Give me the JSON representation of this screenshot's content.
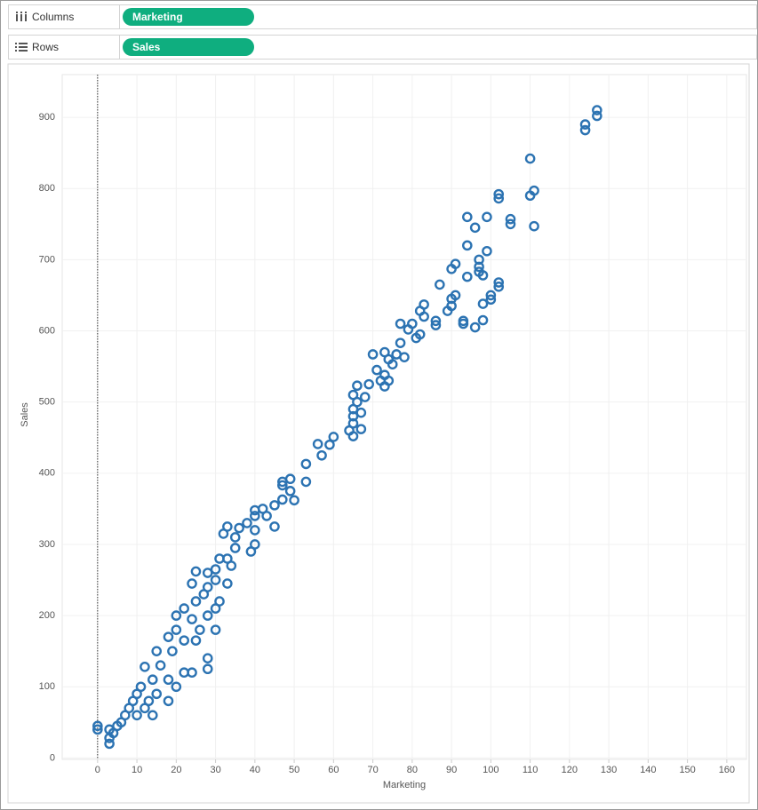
{
  "shelves": {
    "columns": {
      "label": "Columns",
      "field": "Marketing"
    },
    "rows": {
      "label": "Rows",
      "field": "Sales"
    }
  },
  "chart_data": {
    "type": "scatter",
    "x_label": "Marketing",
    "y_label": "Sales",
    "color": "#2c73b2",
    "grid": true,
    "zero_line": true,
    "xlim": [
      -9,
      165
    ],
    "xticks": [
      0,
      10,
      20,
      30,
      40,
      50,
      60,
      70,
      80,
      90,
      100,
      110,
      120,
      130,
      140,
      150,
      160
    ],
    "ylim": [
      -2,
      960
    ],
    "yticks": [
      0,
      100,
      200,
      300,
      400,
      500,
      600,
      700,
      800,
      900
    ],
    "x": [
      127,
      127,
      124,
      124,
      110,
      102,
      102,
      111,
      110,
      105,
      105,
      111,
      94,
      99,
      96,
      94,
      99,
      97,
      97,
      91,
      90,
      97,
      98,
      94,
      87,
      102,
      102,
      100,
      100,
      91,
      90,
      98,
      90,
      89,
      83,
      82,
      83,
      86,
      86,
      93,
      93,
      96,
      98,
      77,
      80,
      79,
      82,
      81,
      77,
      78,
      70,
      73,
      76,
      74,
      75,
      71,
      73,
      74,
      72,
      73,
      69,
      66,
      68,
      65,
      66,
      65,
      67,
      65,
      65,
      67,
      64,
      65,
      60,
      59,
      56,
      57,
      53,
      53,
      49,
      47,
      47,
      49,
      47,
      50,
      45,
      42,
      43,
      40,
      40,
      38,
      45,
      40,
      36,
      33,
      32,
      35,
      40,
      39,
      35,
      33,
      31,
      34,
      30,
      28,
      25,
      30,
      33,
      28,
      24,
      27,
      31,
      25,
      30,
      22,
      28,
      24,
      20,
      30,
      26,
      20,
      25,
      22,
      18,
      19,
      28,
      15,
      28,
      24,
      22,
      16,
      12,
      18,
      14,
      20,
      11,
      15,
      10,
      13,
      9,
      12,
      8,
      10,
      7,
      6,
      5,
      3,
      4,
      3,
      3,
      0,
      0,
      14,
      18
    ],
    "y": [
      910,
      902,
      890,
      882,
      842,
      792,
      786,
      797,
      790,
      757,
      750,
      747,
      760,
      760,
      745,
      720,
      712,
      700,
      690,
      694,
      687,
      683,
      678,
      676,
      665,
      668,
      662,
      650,
      644,
      650,
      645,
      638,
      635,
      628,
      637,
      628,
      620,
      614,
      608,
      614,
      610,
      605,
      615,
      610,
      610,
      602,
      595,
      590,
      583,
      563,
      567,
      570,
      567,
      560,
      553,
      545,
      538,
      530,
      530,
      522,
      525,
      523,
      507,
      510,
      500,
      490,
      485,
      480,
      470,
      462,
      460,
      452,
      451,
      440,
      441,
      425,
      413,
      388,
      392,
      388,
      383,
      375,
      363,
      362,
      355,
      350,
      340,
      348,
      340,
      330,
      325,
      320,
      323,
      325,
      315,
      310,
      300,
      290,
      295,
      280,
      280,
      270,
      265,
      260,
      262,
      250,
      245,
      240,
      245,
      230,
      220,
      220,
      210,
      210,
      200,
      195,
      200,
      180,
      180,
      180,
      165,
      165,
      170,
      150,
      140,
      150,
      125,
      120,
      120,
      130,
      128,
      110,
      110,
      100,
      100,
      90,
      90,
      80,
      80,
      70,
      70,
      60,
      60,
      50,
      45,
      40,
      35,
      28,
      20,
      45,
      40,
      60,
      80
    ]
  }
}
